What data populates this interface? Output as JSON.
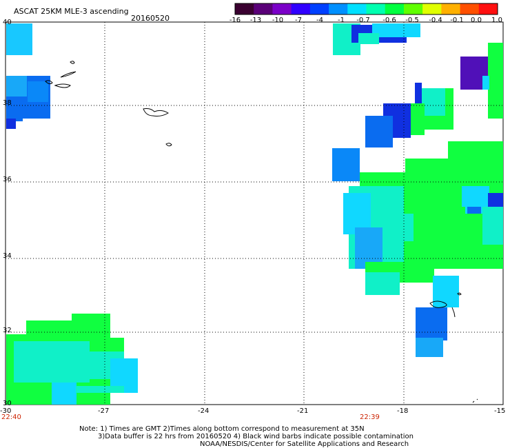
{
  "header": {
    "title": "ASCAT 25KM MLE-3 ascending",
    "date": "20160520"
  },
  "colorbar": {
    "labels": [
      "-16",
      "-13",
      "-10",
      "-7",
      "-4",
      "-1",
      "-0.7",
      "-0.6",
      "-0.5",
      "-0.4",
      "-0.1",
      "0.0",
      "1.0"
    ],
    "colors": [
      "#3a0030",
      "#5a0078",
      "#7a00c8",
      "#3000ff",
      "#0040ff",
      "#0090ff",
      "#00e0ff",
      "#00ffb0",
      "#00ff40",
      "#60ff00",
      "#e0ff00",
      "#ffb000",
      "#ff5000",
      "#ff1010"
    ]
  },
  "axes": {
    "lon_labels": [
      "-30",
      "-27",
      "-24",
      "-21",
      "-18",
      "-15"
    ],
    "lat_labels": [
      "40",
      "38",
      "36",
      "34",
      "32",
      "30"
    ]
  },
  "times": {
    "left": "22:40",
    "right": "22:39"
  },
  "footer": {
    "line1": "Note: 1) Times are GMT 2)Times along bottom correspond to measurement at 35N",
    "line2": "3)Data buffer is 22 hrs from 20160520 4) Black wind barbs indicate possible contamination",
    "line3": "NOAA/NESDIS/Center for Satellite Applications and Research"
  },
  "legend_colors": {
    "blue_dark": "#1030e0",
    "blue": "#0a6cf0",
    "cyan_blue": "#18a8f8",
    "cyan": "#10d8ff",
    "aqua": "#10f0c8",
    "green": "#10ff40",
    "purple": "#5010b8"
  }
}
